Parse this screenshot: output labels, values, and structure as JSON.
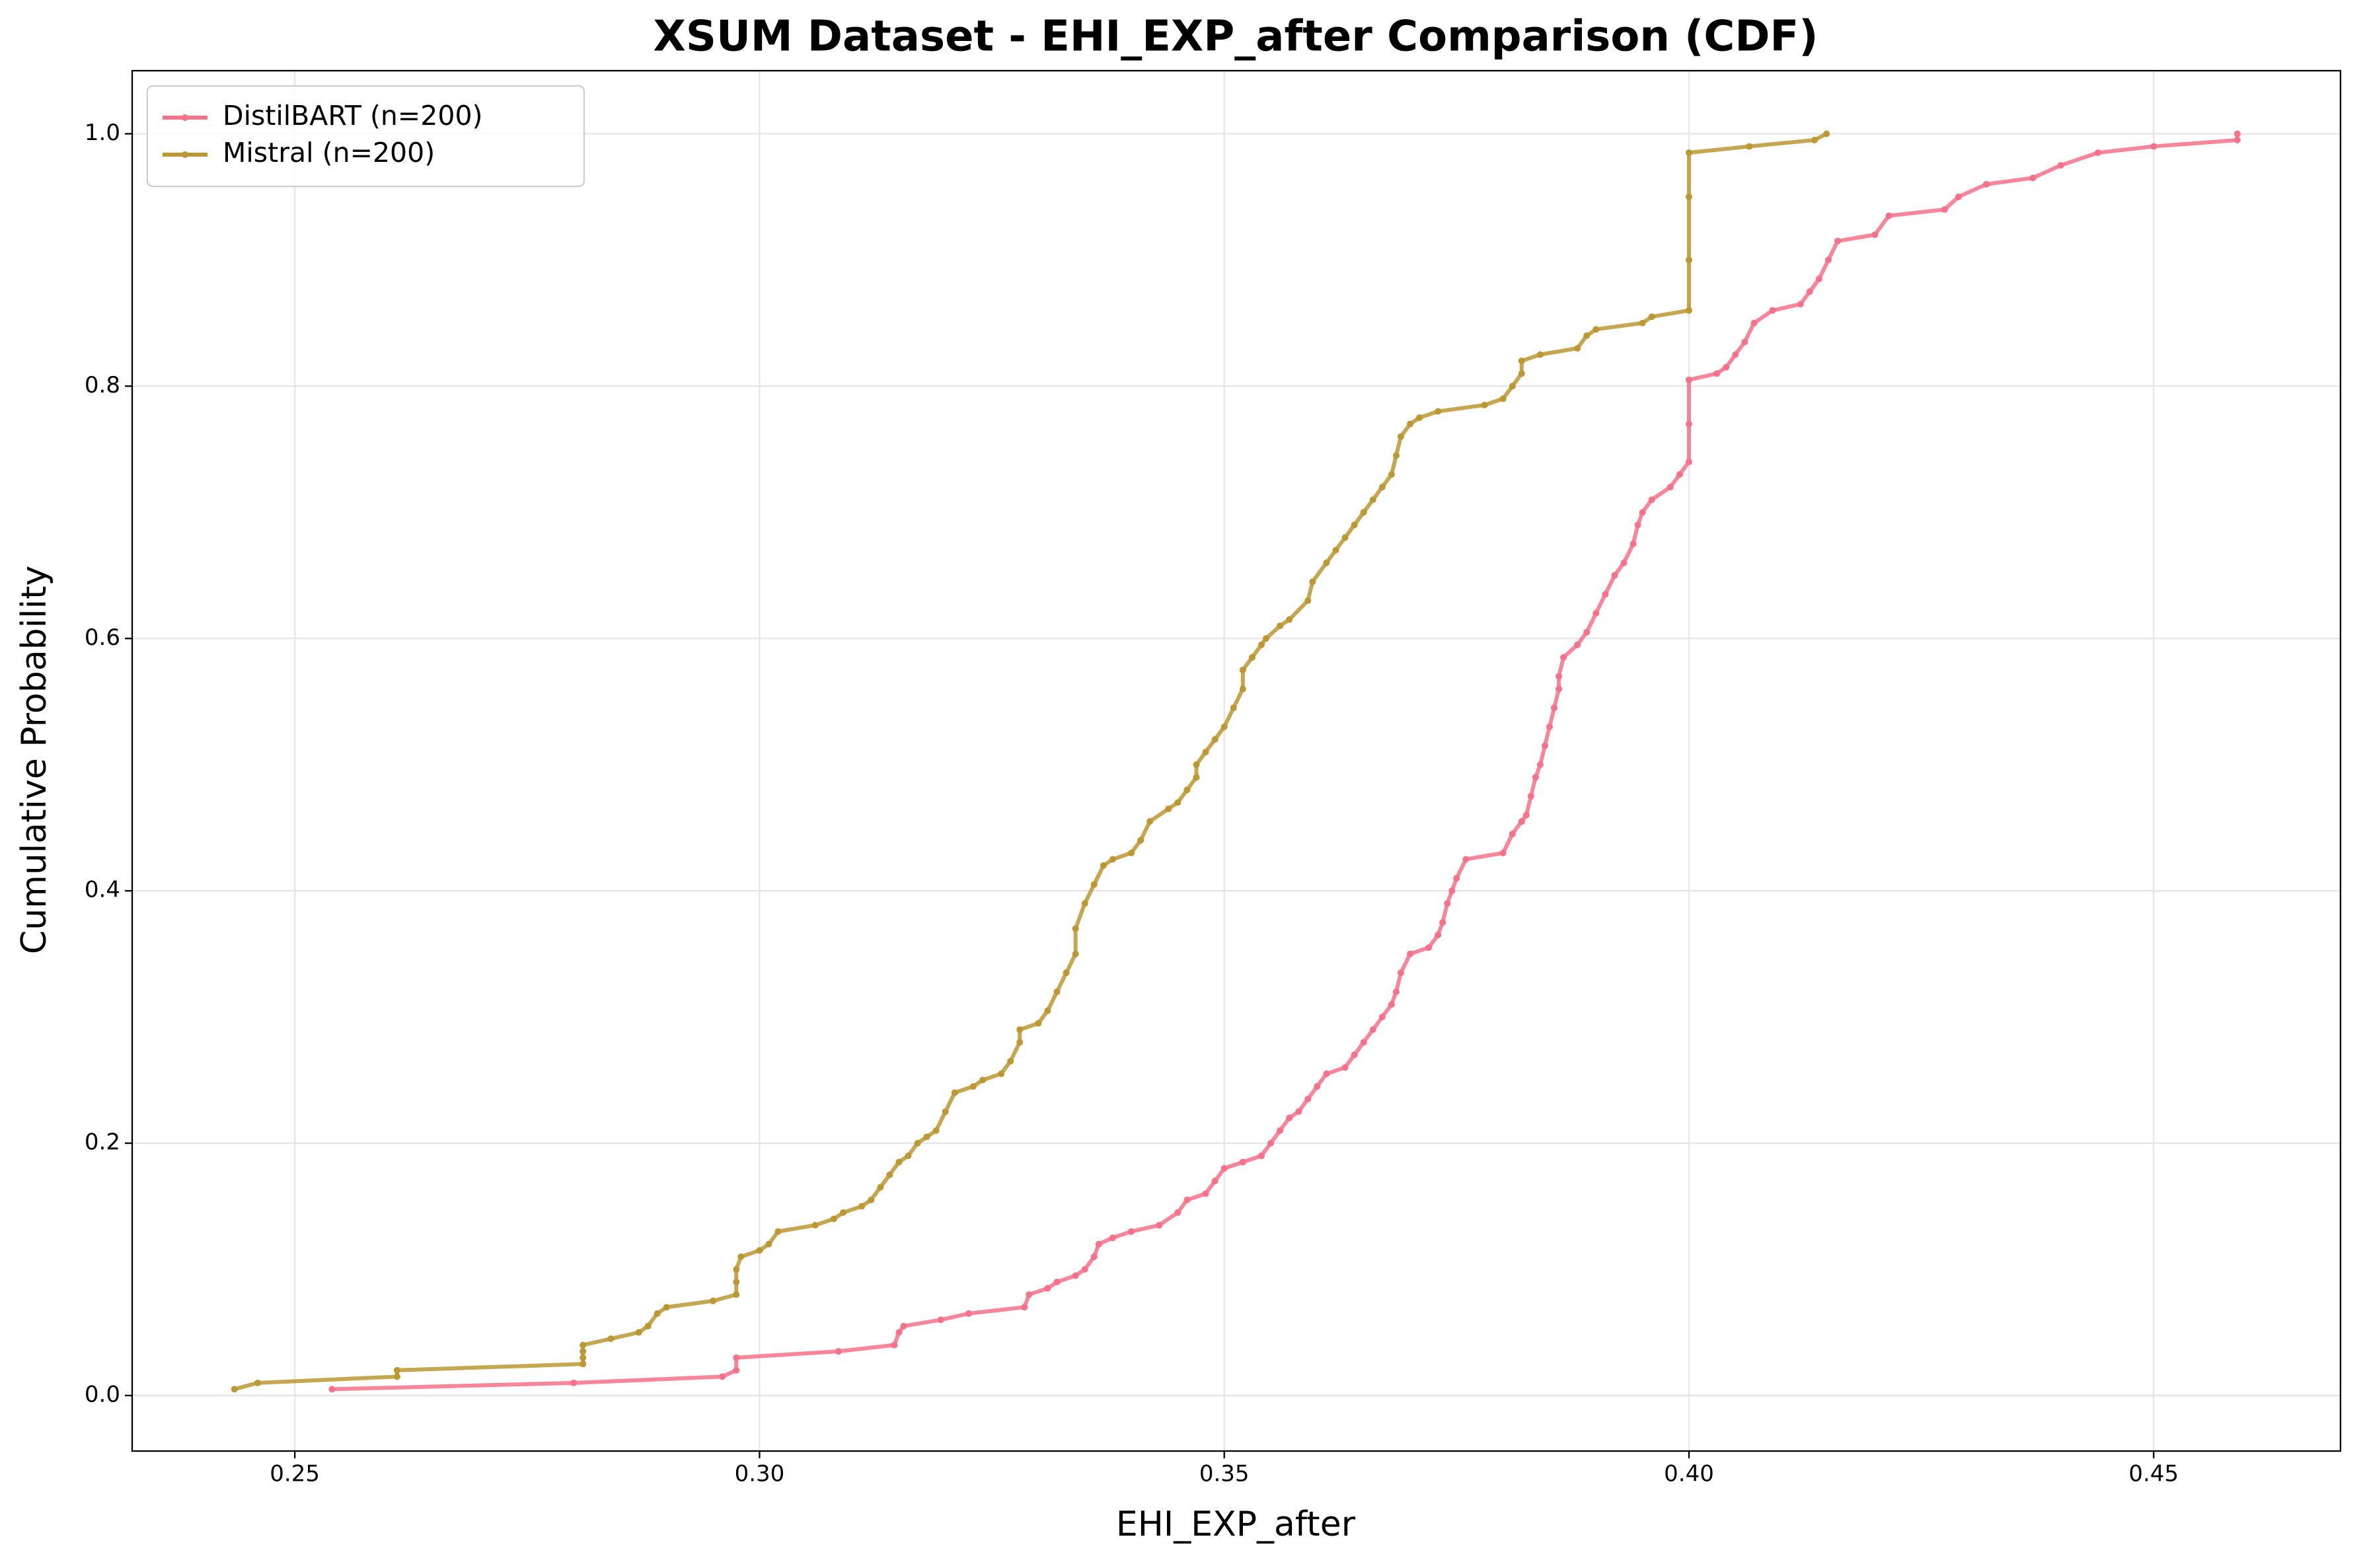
{
  "chart_data": {
    "type": "line",
    "title": "XSUM Dataset - EHI_EXP_after Comparison (CDF)",
    "x_label": "EHI_EXP_after",
    "y_label": "Cumulative Probability",
    "xlim": [
      0.2325,
      0.4701
    ],
    "ylim": [
      -0.044,
      1.05
    ],
    "xticks": [
      0.25,
      {
        "value": 0.3,
        "label": "0.30"
      },
      0.35,
      {
        "value": 0.4,
        "label": "0.40"
      },
      0.45
    ],
    "yticks": [
      {
        "value": 0,
        "label": "0.0"
      },
      0.2,
      0.4,
      0.6,
      0.8,
      {
        "value": 1,
        "label": "1.0"
      }
    ],
    "grid": true,
    "legend": "upper left",
    "series": [
      {
        "name": "DistilBART (n=200)",
        "color": "#f77189",
        "x": [
          0.254,
          0.28,
          0.296,
          0.2975,
          0.2975,
          0.3085,
          0.3145,
          0.315,
          0.3155,
          0.3195,
          0.3225,
          0.3285,
          0.329,
          0.331,
          0.332,
          0.334,
          0.335,
          0.336,
          0.3365,
          0.338,
          0.34,
          0.343,
          0.345,
          0.346,
          0.348,
          0.349,
          0.35,
          0.352,
          0.354,
          0.355,
          0.356,
          0.357,
          0.358,
          0.359,
          0.36,
          0.361,
          0.363,
          0.364,
          0.365,
          0.366,
          0.367,
          0.368,
          0.3685,
          0.369,
          0.37,
          0.372,
          0.373,
          0.3735,
          0.374,
          0.3745,
          0.375,
          0.376,
          0.38,
          0.381,
          0.382,
          0.3825,
          0.383,
          0.3835,
          0.384,
          0.3845,
          0.385,
          0.3855,
          0.386,
          0.386,
          0.3865,
          0.388,
          0.389,
          0.39,
          0.391,
          0.392,
          0.393,
          0.394,
          0.3945,
          0.395,
          0.396,
          0.398,
          0.399,
          0.4,
          0.4,
          0.4,
          0.403,
          0.404,
          0.405,
          0.406,
          0.407,
          0.409,
          0.412,
          0.413,
          0.414,
          0.415,
          0.416,
          0.42,
          0.4215,
          0.4275,
          0.429,
          0.432,
          0.437,
          0.44,
          0.444,
          0.45,
          0.459,
          0.459
        ],
        "values": [
          0.005,
          0.01,
          0.015,
          0.02,
          0.03,
          0.035,
          0.04,
          0.05,
          0.055,
          0.06,
          0.065,
          0.07,
          0.08,
          0.085,
          0.09,
          0.095,
          0.1,
          0.11,
          0.12,
          0.125,
          0.13,
          0.135,
          0.145,
          0.155,
          0.16,
          0.17,
          0.18,
          0.185,
          0.19,
          0.2,
          0.21,
          0.22,
          0.225,
          0.235,
          0.245,
          0.255,
          0.26,
          0.27,
          0.28,
          0.29,
          0.3,
          0.31,
          0.32,
          0.335,
          0.35,
          0.355,
          0.365,
          0.375,
          0.39,
          0.4,
          0.41,
          0.425,
          0.43,
          0.445,
          0.455,
          0.46,
          0.475,
          0.49,
          0.5,
          0.515,
          0.53,
          0.545,
          0.56,
          0.57,
          0.585,
          0.595,
          0.605,
          0.62,
          0.635,
          0.65,
          0.66,
          0.675,
          0.69,
          0.7,
          0.71,
          0.72,
          0.73,
          0.74,
          0.77,
          0.805,
          0.81,
          0.815,
          0.825,
          0.835,
          0.85,
          0.86,
          0.865,
          0.875,
          0.885,
          0.9,
          0.915,
          0.92,
          0.935,
          0.94,
          0.95,
          0.96,
          0.965,
          0.975,
          0.985,
          0.99,
          0.995,
          1.0
        ]
      },
      {
        "name": "Mistral (n=200)",
        "color": "#bb9832",
        "x": [
          0.2435,
          0.246,
          0.261,
          0.261,
          0.281,
          0.281,
          0.281,
          0.281,
          0.284,
          0.287,
          0.288,
          0.289,
          0.29,
          0.295,
          0.2975,
          0.2975,
          0.2975,
          0.298,
          0.3,
          0.301,
          0.302,
          0.306,
          0.308,
          0.309,
          0.311,
          0.312,
          0.313,
          0.314,
          0.315,
          0.316,
          0.317,
          0.318,
          0.319,
          0.32,
          0.321,
          0.323,
          0.324,
          0.326,
          0.327,
          0.328,
          0.328,
          0.33,
          0.331,
          0.332,
          0.333,
          0.334,
          0.334,
          0.335,
          0.336,
          0.337,
          0.338,
          0.34,
          0.341,
          0.342,
          0.344,
          0.345,
          0.346,
          0.347,
          0.347,
          0.348,
          0.349,
          0.35,
          0.351,
          0.352,
          0.352,
          0.353,
          0.354,
          0.3545,
          0.356,
          0.357,
          0.359,
          0.3595,
          0.361,
          0.362,
          0.363,
          0.364,
          0.365,
          0.366,
          0.367,
          0.368,
          0.3685,
          0.369,
          0.37,
          0.371,
          0.373,
          0.378,
          0.38,
          0.381,
          0.382,
          0.382,
          0.384,
          0.388,
          0.389,
          0.39,
          0.395,
          0.396,
          0.4,
          0.4,
          0.4,
          0.4,
          0.4065,
          0.4135,
          0.4148
        ],
        "values": [
          0.005,
          0.01,
          0.015,
          0.02,
          0.025,
          0.03,
          0.035,
          0.04,
          0.045,
          0.05,
          0.055,
          0.065,
          0.07,
          0.075,
          0.08,
          0.09,
          0.1,
          0.11,
          0.115,
          0.12,
          0.13,
          0.135,
          0.14,
          0.145,
          0.15,
          0.155,
          0.165,
          0.175,
          0.185,
          0.19,
          0.2,
          0.205,
          0.21,
          0.225,
          0.24,
          0.245,
          0.25,
          0.255,
          0.265,
          0.28,
          0.29,
          0.295,
          0.305,
          0.32,
          0.335,
          0.35,
          0.37,
          0.39,
          0.405,
          0.42,
          0.425,
          0.43,
          0.44,
          0.455,
          0.465,
          0.47,
          0.48,
          0.49,
          0.5,
          0.51,
          0.52,
          0.53,
          0.545,
          0.56,
          0.575,
          0.585,
          0.595,
          0.6,
          0.61,
          0.615,
          0.63,
          0.645,
          0.66,
          0.67,
          0.68,
          0.69,
          0.7,
          0.71,
          0.72,
          0.73,
          0.745,
          0.76,
          0.77,
          0.775,
          0.78,
          0.785,
          0.79,
          0.8,
          0.81,
          0.82,
          0.825,
          0.83,
          0.84,
          0.845,
          0.85,
          0.855,
          0.86,
          0.9,
          0.95,
          0.985,
          0.99,
          0.995,
          1.0
        ]
      }
    ]
  }
}
